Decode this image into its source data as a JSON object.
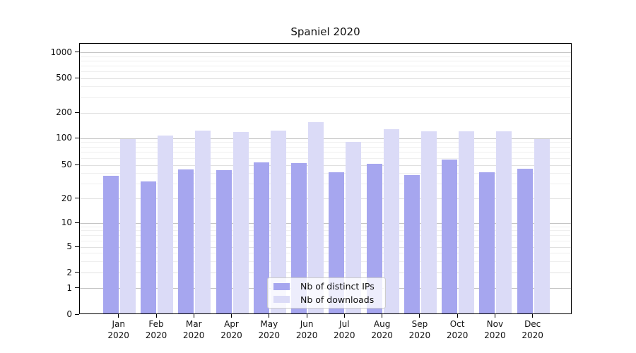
{
  "chart_data": {
    "type": "bar",
    "title": "Spaniel 2020",
    "year_label": "2020",
    "categories": [
      "Jan",
      "Feb",
      "Mar",
      "Apr",
      "May",
      "Jun",
      "Jul",
      "Aug",
      "Sep",
      "Oct",
      "Nov",
      "Dec"
    ],
    "series": [
      {
        "name": "Nb of distinct IPs",
        "color": "#a6a6ef",
        "values": [
          36,
          31,
          43,
          42,
          52,
          51,
          40,
          50,
          37,
          56,
          40,
          44
        ]
      },
      {
        "name": "Nb of downloads",
        "color": "#dbdbf7",
        "values": [
          95,
          104,
          120,
          114,
          120,
          150,
          88,
          124,
          117,
          117,
          117,
          94
        ]
      }
    ],
    "xlabel": "",
    "ylabel": "",
    "y_axis": {
      "scale": "log-like",
      "ticks": [
        0,
        1,
        2,
        5,
        10,
        20,
        50,
        100,
        200,
        500,
        1000
      ],
      "minor_ticks": [
        3,
        4,
        6,
        7,
        8,
        9,
        30,
        40,
        60,
        70,
        80,
        90,
        300,
        400,
        600,
        700,
        800,
        900
      ],
      "range_top": 1270
    },
    "grid": "on",
    "legend": {
      "position": "inside-bottom-center",
      "entries": [
        "Nb of distinct IPs",
        "Nb of downloads"
      ]
    }
  }
}
